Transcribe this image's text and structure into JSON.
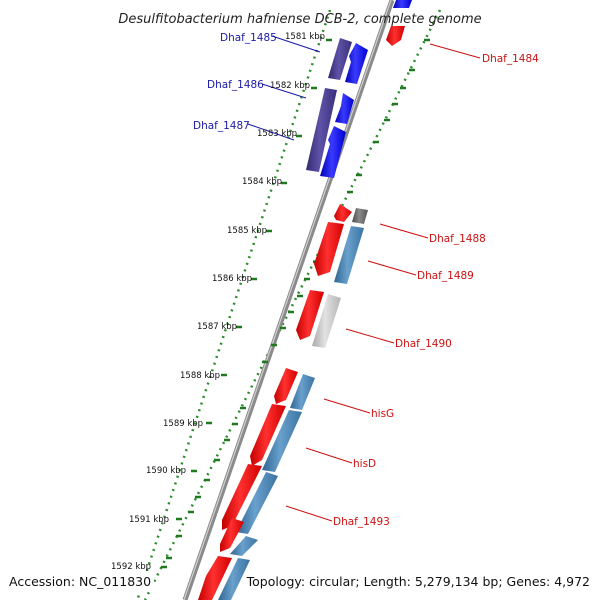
{
  "title": "Desulfitobacterium hafniense DCB-2, complete genome",
  "accession": "Accession: NC_011830",
  "topology": "Topology: circular; Length: 5,279,134 bp; Genes: 4,972",
  "kbp_labels": [
    "1581 kbp",
    "1582 kbp",
    "1583 kbp",
    "1584 kbp",
    "1585 kbp",
    "1586 kbp",
    "1587 kbp",
    "1588 kbp",
    "1589 kbp",
    "1590 kbp",
    "1591 kbp",
    "1592 kbp"
  ],
  "gene_labels": {
    "dhaf_1485": "Dhaf_1485",
    "dhaf_1486": "Dhaf_1486",
    "dhaf_1487": "Dhaf_1487",
    "dhaf_1484": "Dhaf_1484",
    "dhaf_1488": "Dhaf_1488",
    "dhaf_1489": "Dhaf_1489",
    "dhaf_1490": "Dhaf_1490",
    "hisg": "hisG",
    "hisd": "hisD",
    "dhaf_1493": "Dhaf_1493"
  },
  "colors": {
    "forward_strand": "#0000ff",
    "reverse_strand": "#ff0000",
    "cog_dark": "#4a3f8f",
    "cog_steel": "#4682b4",
    "cog_gray": "#666666",
    "cog_light": "#c8c8c8",
    "backbone": "#8a8a8a",
    "gc_ticks": "#2e8b2e"
  }
}
